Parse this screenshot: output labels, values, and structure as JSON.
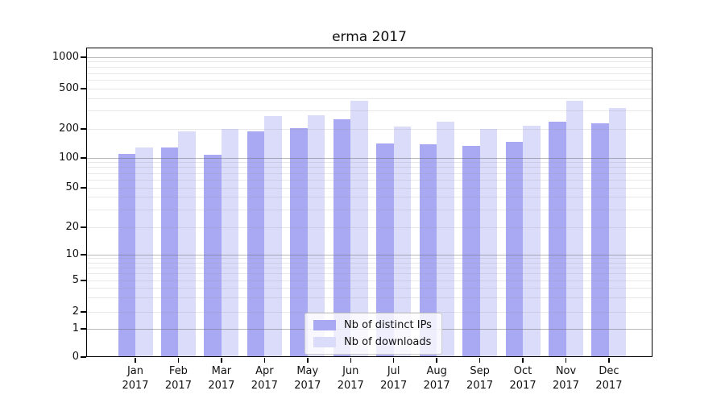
{
  "chart_data": {
    "type": "bar",
    "title": "erma 2017",
    "categories": [
      "Jan",
      "Feb",
      "Mar",
      "Apr",
      "May",
      "Jun",
      "Jul",
      "Aug",
      "Sep",
      "Oct",
      "Nov",
      "Dec"
    ],
    "x_tick_second_line": "2017",
    "series": [
      {
        "name": "Nb of distinct IPs",
        "color": "#a9a9f3",
        "values": [
          110,
          128,
          109,
          187,
          202,
          250,
          142,
          138,
          133,
          148,
          235,
          228
        ]
      },
      {
        "name": "Nb of downloads",
        "color": "#dbdbfa",
        "values": [
          129,
          190,
          200,
          270,
          272,
          380,
          212,
          236,
          199,
          215,
          380,
          325
        ]
      }
    ],
    "xlabel": "",
    "ylabel": "",
    "y_ticks": [
      0,
      1,
      2,
      5,
      10,
      20,
      50,
      100,
      200,
      500,
      1000
    ],
    "y_minor_ticks": [
      3,
      4,
      6,
      7,
      8,
      9,
      30,
      40,
      60,
      70,
      80,
      90,
      300,
      400,
      600,
      700,
      800,
      900
    ],
    "scale": "symlog",
    "ylim": [
      0,
      1300
    ],
    "grid": true,
    "legend_position": "lower center"
  },
  "colors": {
    "background": "#ffffff",
    "axis": "#000000",
    "grid_minor": "#e8e8e8",
    "grid_major": "#b9b9b9",
    "legend_border": "#cccccc"
  }
}
